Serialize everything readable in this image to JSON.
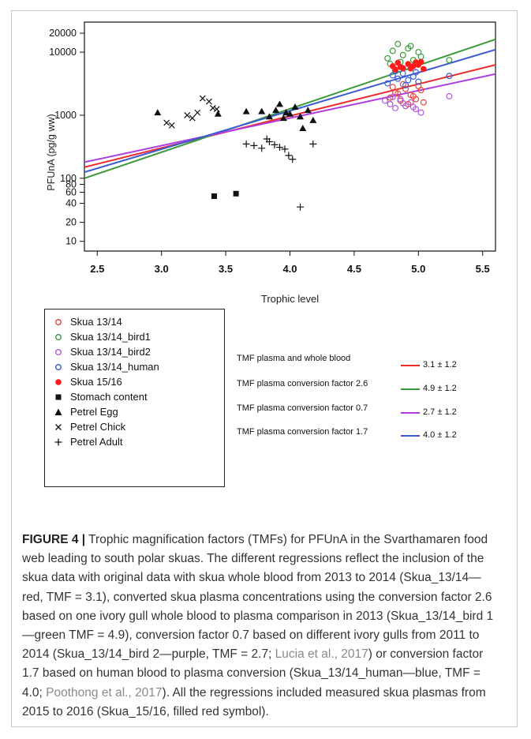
{
  "figure": {
    "label": "FIGURE 4 |",
    "caption_parts": [
      {
        "text": " Trophic magnification factors (TMFs) for PFUnA in the Svarthamaren food web leading to south polar skuas. The different regressions reflect the inclusion of the skua data with original data with skua whole blood from 2013 to 2014 (Skua_13/14—red, TMF = 3.1), converted skua plasma concentrations using the conversion factor 2.6 based on one ivory gull whole blood to plasma comparison in 2013 (Skua_13/14_bird 1—green TMF = 4.9), conversion factor 0.7 based on different ivory gulls from 2011 to 2014 (Skua_13/14_bird 2—purple, TMF = 2.7; ",
        "cite": false
      },
      {
        "text": "Lucia et al., 2017",
        "cite": true
      },
      {
        "text": ") or conversion factor 1.7 based on human blood to plasma conversion (Skua_13/14_human—blue, TMF = 4.0; ",
        "cite": false
      },
      {
        "text": "Poothong et al., 2017",
        "cite": true
      },
      {
        "text": "). All the regressions included measured skua plasmas from 2015 to 2016 (Skua_15/16, filled red symbol).",
        "cite": false
      }
    ]
  },
  "chart_data": {
    "type": "scatter",
    "xlabel": "Trophic level",
    "ylabel": "PFUnA (pg/g ww)",
    "xlim": [
      2.4,
      5.6
    ],
    "ylim": [
      7,
      30000
    ],
    "yscale": "log",
    "x_ticks": [
      2.5,
      3.0,
      3.5,
      4.0,
      4.5,
      5.0,
      5.5
    ],
    "x_tick_labels": [
      "2.5",
      "3.0",
      "3.5",
      "4.0",
      "4.5",
      "5.0",
      "5.5"
    ],
    "y_ticks": [
      10,
      20,
      40,
      60,
      80,
      100,
      1000,
      10000,
      20000
    ],
    "y_tick_labels": [
      "10",
      "20",
      "40",
      "60",
      "80",
      "100",
      "1000",
      "10000",
      "20000"
    ],
    "legend_position": "below-left",
    "series": [
      {
        "name": "Skua 13/14",
        "marker": "circle-open",
        "color": "#e8453c",
        "points": [
          [
            4.78,
            1900
          ],
          [
            4.82,
            2300
          ],
          [
            4.86,
            1700
          ],
          [
            4.9,
            2600
          ],
          [
            4.94,
            2100
          ],
          [
            4.98,
            1800
          ],
          [
            5.02,
            2500
          ],
          [
            4.8,
            2800
          ],
          [
            4.88,
            3100
          ],
          [
            4.96,
            2000
          ],
          [
            5.04,
            1600
          ],
          [
            4.84,
            2200
          ],
          [
            4.92,
            1500
          ],
          [
            5.0,
            2900
          ]
        ]
      },
      {
        "name": "Skua 13/14_bird1",
        "marker": "circle-open",
        "color": "#3a9a3a",
        "points": [
          [
            4.76,
            8000
          ],
          [
            4.8,
            10500
          ],
          [
            4.84,
            13500
          ],
          [
            4.88,
            9000
          ],
          [
            4.92,
            11500
          ],
          [
            4.96,
            7500
          ],
          [
            5.0,
            10000
          ],
          [
            4.86,
            7000
          ],
          [
            4.94,
            12500
          ],
          [
            4.78,
            6500
          ],
          [
            5.02,
            8500
          ],
          [
            5.24,
            7500
          ]
        ]
      },
      {
        "name": "Skua 13/14_bird2",
        "marker": "circle-open",
        "color": "#b05ad8",
        "points": [
          [
            4.74,
            1700
          ],
          [
            4.78,
            1500
          ],
          [
            4.82,
            1300
          ],
          [
            4.86,
            1800
          ],
          [
            4.9,
            1400
          ],
          [
            4.94,
            1600
          ],
          [
            4.98,
            1250
          ],
          [
            5.02,
            1100
          ],
          [
            4.8,
            1950
          ],
          [
            4.88,
            1550
          ],
          [
            4.96,
            1350
          ],
          [
            5.24,
            2000
          ]
        ]
      },
      {
        "name": "Skua 13/14_human",
        "marker": "circle-open",
        "color": "#3b5bd1",
        "points": [
          [
            4.76,
            3200
          ],
          [
            4.8,
            4300
          ],
          [
            4.84,
            3800
          ],
          [
            4.88,
            4600
          ],
          [
            4.92,
            3600
          ],
          [
            4.96,
            4100
          ],
          [
            5.0,
            3400
          ],
          [
            4.82,
            5000
          ],
          [
            4.9,
            3000
          ],
          [
            5.24,
            4200
          ],
          [
            4.98,
            4800
          ]
        ]
      },
      {
        "name": "Skua 15/16",
        "marker": "circle-filled",
        "color": "#ff1a1a",
        "points": [
          [
            4.8,
            6000
          ],
          [
            4.84,
            6800
          ],
          [
            4.88,
            5600
          ],
          [
            4.92,
            6500
          ],
          [
            4.96,
            6000
          ],
          [
            5.0,
            6300
          ],
          [
            4.86,
            5800
          ],
          [
            4.94,
            5500
          ],
          [
            5.02,
            7000
          ],
          [
            4.82,
            5300
          ],
          [
            4.98,
            6900
          ],
          [
            5.04,
            5400
          ]
        ]
      },
      {
        "name": "Stomach content",
        "marker": "square-filled",
        "color": "#111111",
        "points": [
          [
            3.41,
            52
          ],
          [
            3.58,
            57
          ]
        ]
      },
      {
        "name": "Petrel Egg",
        "marker": "triangle-filled",
        "color": "#111111",
        "points": [
          [
            2.97,
            1100
          ],
          [
            3.44,
            1050
          ],
          [
            3.66,
            1150
          ],
          [
            3.78,
            1150
          ],
          [
            3.84,
            950
          ],
          [
            3.89,
            1200
          ],
          [
            3.92,
            1500
          ],
          [
            3.97,
            1100
          ],
          [
            4.0,
            1050
          ],
          [
            4.04,
            1350
          ],
          [
            4.08,
            950
          ],
          [
            4.1,
            620
          ],
          [
            4.14,
            1200
          ],
          [
            3.95,
            900
          ],
          [
            4.18,
            830
          ]
        ]
      },
      {
        "name": "Petrel Chick",
        "marker": "x",
        "color": "#111111",
        "points": [
          [
            3.04,
            760
          ],
          [
            3.08,
            690
          ],
          [
            3.2,
            1000
          ],
          [
            3.24,
            900
          ],
          [
            3.28,
            1100
          ],
          [
            3.32,
            1850
          ],
          [
            3.37,
            1650
          ],
          [
            3.4,
            1300
          ],
          [
            3.43,
            1250
          ]
        ]
      },
      {
        "name": "Petrel Adult",
        "marker": "plus",
        "color": "#111111",
        "points": [
          [
            3.66,
            350
          ],
          [
            3.72,
            330
          ],
          [
            3.78,
            300
          ],
          [
            3.82,
            420
          ],
          [
            3.84,
            380
          ],
          [
            3.88,
            340
          ],
          [
            3.96,
            290
          ],
          [
            3.99,
            230
          ],
          [
            4.02,
            200
          ],
          [
            4.08,
            35
          ],
          [
            4.18,
            350
          ],
          [
            3.92,
            310
          ]
        ]
      }
    ],
    "regressions": [
      {
        "label": "TMF plasma and whole blood",
        "value": "3.1 ± 1.2",
        "color": "#ee2a2a",
        "x": [
          2.4,
          5.6
        ],
        "y": [
          150,
          6300
        ]
      },
      {
        "label": "TMF plasma conversion factor 2.6",
        "value": "4.9 ± 1.2",
        "color": "#3a9a3a",
        "x": [
          2.4,
          5.6
        ],
        "y": [
          100,
          16000
        ]
      },
      {
        "label": "TMF plasma conversion factor 0.7",
        "value": "2.7 ± 1.2",
        "color": "#b03de0",
        "x": [
          2.4,
          5.6
        ],
        "y": [
          180,
          4500
        ]
      },
      {
        "label": "TMF plasma conversion factor 1.7",
        "value": "4.0 ± 1.2",
        "color": "#3b5bd1",
        "x": [
          2.4,
          5.6
        ],
        "y": [
          125,
          11000
        ]
      }
    ]
  }
}
